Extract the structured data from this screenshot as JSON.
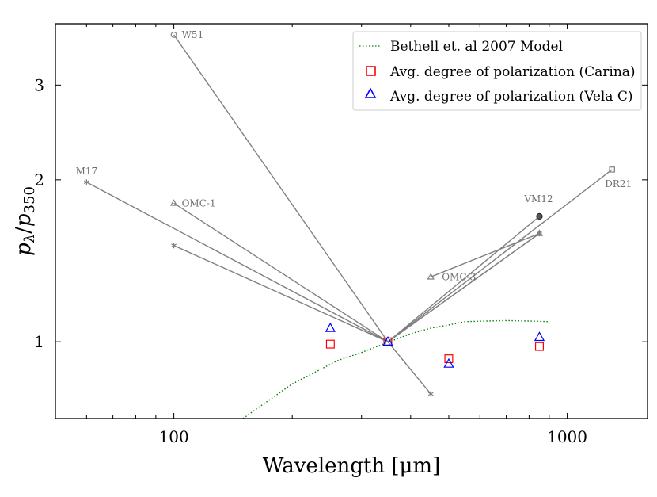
{
  "chart_data": {
    "type": "scatter",
    "title": "",
    "xlabel": "Wavelength [μm]",
    "ylabel_main": "p",
    "ylabel_sub_num": "λ",
    "ylabel_sep": "/",
    "ylabel_den": "p",
    "ylabel_sub_den": "350",
    "xscale": "log",
    "yscale": "log",
    "xlim": [
      50,
      1600
    ],
    "ylim": [
      0.72,
      3.9
    ],
    "xticks": [
      {
        "value": 100,
        "label": "100"
      },
      {
        "value": 1000,
        "label": "1000"
      }
    ],
    "yticks": [
      {
        "value": 1,
        "label": "1"
      },
      {
        "value": 2,
        "label": "2"
      },
      {
        "value": 3,
        "label": "3"
      }
    ],
    "legend_position": "top-right",
    "colors": {
      "sources": "#808080",
      "model": "#008000",
      "carina": "#ff0000",
      "velac": "#0000ff"
    },
    "sources": [
      {
        "name": "W51",
        "marker": "circle",
        "label_anchor": "right",
        "points": [
          [
            100,
            3.72
          ],
          [
            350,
            1.0
          ]
        ]
      },
      {
        "name": "M17",
        "marker": "star",
        "label_anchor": "above",
        "points": [
          [
            60,
            1.98
          ],
          [
            350,
            1.0
          ],
          [
            450,
            0.8
          ]
        ]
      },
      {
        "name": "OMC-1",
        "marker": "triangle",
        "label_anchor": "right",
        "points": [
          [
            100,
            1.81
          ],
          [
            350,
            1.0
          ]
        ]
      },
      {
        "name": "",
        "marker": "star",
        "label_anchor": "none",
        "points": [
          [
            100,
            1.51
          ],
          [
            350,
            1.0
          ]
        ]
      },
      {
        "name": "DR21",
        "marker": "square",
        "label_anchor": "below",
        "points": [
          [
            1300,
            2.09
          ],
          [
            350,
            1.0
          ]
        ]
      },
      {
        "name": "VM12",
        "marker": "filled-circle",
        "label_anchor": "above",
        "points": [
          [
            850,
            1.71
          ],
          [
            350,
            1.0
          ]
        ]
      },
      {
        "name": "OMC-3",
        "marker": "triangle",
        "label_anchor": "right",
        "points": [
          [
            450,
            1.32
          ],
          [
            850,
            1.59
          ],
          [
            350,
            1.0
          ]
        ]
      },
      {
        "name": "",
        "marker": "star",
        "label_anchor": "none",
        "points": [
          [
            850,
            1.59
          ],
          [
            350,
            1.0
          ]
        ]
      }
    ],
    "series": [
      {
        "name": "Bethell et. al 2007 Model",
        "style": "dotted-line",
        "x": [
          150,
          160,
          175,
          200,
          230,
          260,
          300,
          350,
          400,
          450,
          500,
          550,
          600,
          700,
          800,
          900
        ],
        "y": [
          0.72,
          0.745,
          0.78,
          0.835,
          0.88,
          0.922,
          0.955,
          0.998,
          1.035,
          1.06,
          1.075,
          1.09,
          1.092,
          1.095,
          1.093,
          1.09
        ]
      },
      {
        "name": "Avg. degree of polarization (Carina)",
        "marker": "square",
        "x": [
          250,
          350,
          500,
          850
        ],
        "y": [
          0.99,
          1.0,
          0.93,
          0.98
        ]
      },
      {
        "name": "Avg. degree of polarization (Vela C)",
        "marker": "triangle",
        "x": [
          250,
          350,
          500,
          850
        ],
        "y": [
          1.06,
          1.0,
          0.91,
          1.02
        ]
      }
    ]
  }
}
